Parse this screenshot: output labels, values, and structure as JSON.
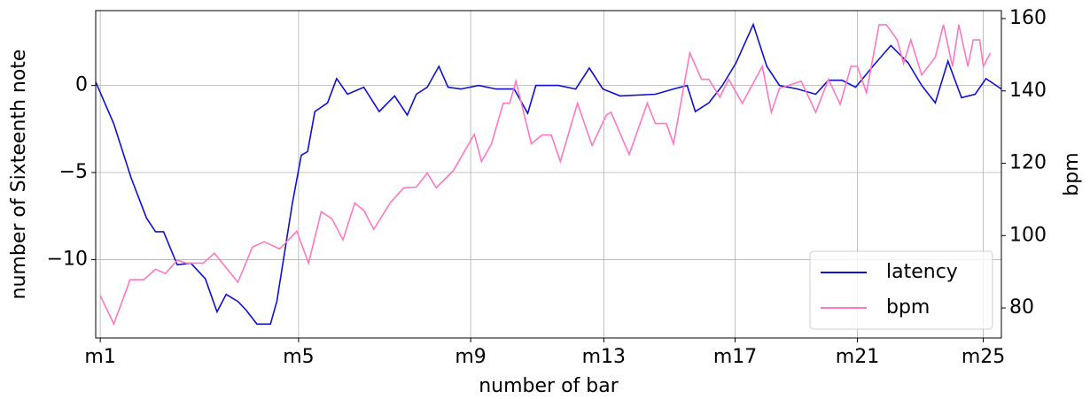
{
  "chart_data": {
    "type": "line",
    "xlabel": "number of bar",
    "ylabel": "number of Sixteenth note",
    "y2label": "bpm",
    "xlim": [
      0,
      100
    ],
    "ylim": [
      -14.5,
      4.3
    ],
    "y2lim": [
      71.7,
      162.2
    ],
    "xticks": [
      {
        "value": 0.5,
        "label": "m1"
      },
      {
        "value": 22.4,
        "label": "m5"
      },
      {
        "value": 41.4,
        "label": "m9"
      },
      {
        "value": 56.1,
        "label": "m13"
      },
      {
        "value": 70.6,
        "label": "m17"
      },
      {
        "value": 84.1,
        "label": "m21"
      },
      {
        "value": 98.0,
        "label": "m25"
      }
    ],
    "yticks": [
      {
        "value": -10,
        "label": "−10"
      },
      {
        "value": -5,
        "label": "−5"
      },
      0
    ],
    "y2ticks": [
      80,
      100,
      120,
      140,
      160
    ],
    "grid": true,
    "legend": "lower right",
    "series": [
      {
        "name": "latency",
        "color": "#1010d0",
        "x": [
          0,
          2.0,
          3.9,
          5.6,
          6.6,
          7.5,
          9.0,
          10.5,
          12.1,
          13.4,
          14.4,
          15.7,
          16.6,
          17.8,
          19.3,
          20.0,
          21.7,
          22.7,
          23.4,
          24.2,
          25.6,
          26.6,
          27.8,
          29.6,
          31.3,
          33.0,
          34.4,
          35.4,
          36.6,
          37.9,
          38.9,
          40.3,
          42.3,
          44.2,
          46.2,
          47.7,
          48.6,
          51.1,
          53.0,
          54.5,
          56.0,
          57.9,
          61.8,
          63.8,
          65.3,
          66.2,
          67.7,
          69.2,
          70.7,
          72.6,
          74.1,
          75.5,
          77.5,
          79.5,
          80.9,
          82.4,
          83.9,
          85.8,
          87.8,
          89.7,
          91.2,
          92.7,
          94.1,
          95.6,
          97.1,
          98.3,
          100
        ],
        "values": [
          0.2,
          -2.2,
          -5.3,
          -7.6,
          -8.4,
          -8.4,
          -10.3,
          -10.2,
          -11.1,
          -13,
          -12,
          -12.4,
          -12.9,
          -13.7,
          -13.7,
          -12.4,
          -6.8,
          -4,
          -3.8,
          -1.5,
          -1,
          0.4,
          -0.5,
          -0.1,
          -1.5,
          -0.6,
          -1.7,
          -0.5,
          -0.1,
          1.1,
          -0.1,
          -0.2,
          0,
          -0.2,
          -0.2,
          -1.6,
          0,
          0,
          -0.2,
          1,
          -0.2,
          -0.6,
          -0.5,
          -0.2,
          0,
          -1.5,
          -1,
          0,
          1.3,
          3.5,
          1.1,
          0,
          -0.2,
          -0.5,
          0.3,
          0.3,
          -0.1,
          1.1,
          2.3,
          1.3,
          0,
          -1,
          1.4,
          -0.7,
          -0.5,
          0.4,
          -0.2
        ]
      },
      {
        "name": "bpm",
        "color": "#ff77c0",
        "axis": "y2",
        "x": [
          0.5,
          2.0,
          3.8,
          5.3,
          6.6,
          7.7,
          9.0,
          10.0,
          11.9,
          13.1,
          15.7,
          17.3,
          18.6,
          20.3,
          22.2,
          23.5,
          24.9,
          26.1,
          27.3,
          28.6,
          29.6,
          30.7,
          32.5,
          34.0,
          35.4,
          36.6,
          37.6,
          39.5,
          41.8,
          42.6,
          43.7,
          45.0,
          45.7,
          46.4,
          48.1,
          49.3,
          50.3,
          51.3,
          53.2,
          54.8,
          56.4,
          56.9,
          58.9,
          60.9,
          61.8,
          63.0,
          63.8,
          65.6,
          66.9,
          67.7,
          68.9,
          69.9,
          71.4,
          73.6,
          74.6,
          75.5,
          77.9,
          79.5,
          80.9,
          82.2,
          83.4,
          84.1,
          85.1,
          86.5,
          87.3,
          88.5,
          89.2,
          90.0,
          91.2,
          92.7,
          93.6,
          94.6,
          95.3,
          96.3,
          96.9,
          97.6,
          98.0,
          98.8
        ],
        "values": [
          83.4,
          75.6,
          87.8,
          87.8,
          90.7,
          89.5,
          93.2,
          92.4,
          92.4,
          95.1,
          87.1,
          96.8,
          98.3,
          96.3,
          101.2,
          92.4,
          106.6,
          104.6,
          98.8,
          109,
          107,
          101.7,
          109,
          113.2,
          113.4,
          117.3,
          113.2,
          118,
          128,
          120.5,
          125.4,
          136.6,
          136.6,
          142.7,
          125.4,
          127.8,
          127.8,
          120.5,
          136.6,
          124.9,
          133.4,
          134.1,
          122.4,
          136.6,
          131,
          131,
          125.4,
          150.5,
          143.2,
          143.2,
          138.3,
          143.2,
          136.6,
          146.8,
          134.1,
          140.7,
          142.7,
          134.1,
          143.2,
          136.3,
          146.8,
          146.8,
          139.5,
          158.3,
          158.3,
          154.1,
          147.6,
          154.1,
          144.4,
          149.3,
          158.3,
          146.8,
          158.3,
          146.8,
          154.1,
          154.1,
          146.8,
          150.5
        ]
      }
    ]
  }
}
